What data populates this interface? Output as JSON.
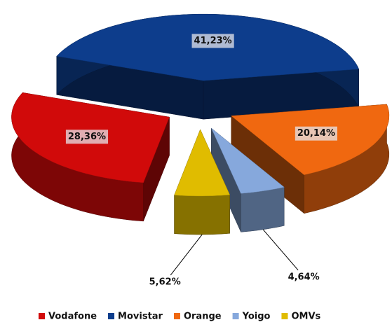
{
  "chart_data": {
    "type": "pie3d",
    "categories": [
      "Vodafone",
      "Movistar",
      "Orange",
      "Yoigo",
      "OMVs"
    ],
    "values": [
      28.36,
      41.23,
      20.14,
      4.64,
      5.62
    ],
    "value_labels": [
      "28,36%",
      "41,23%",
      "20,14%",
      "4,64%",
      "5,62%"
    ],
    "colors": [
      "#d10a0a",
      "#0d3d8c",
      "#f06810",
      "#86a8dc",
      "#e0bc00"
    ],
    "legend": "bottom"
  }
}
